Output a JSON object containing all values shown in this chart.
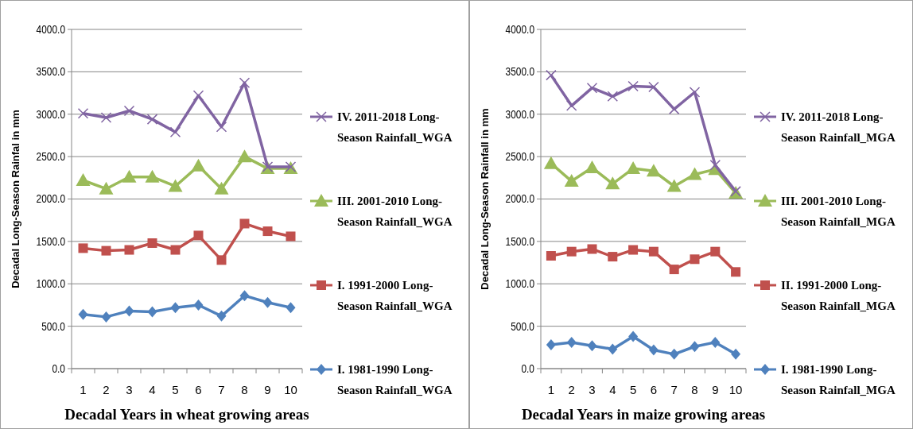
{
  "chart_data": [
    {
      "type": "line",
      "xlabel": "Decadal Years in wheat growing areas",
      "ylabel": "Decadal Long-Season  Rainfal  in mm",
      "categories": [
        "1",
        "2",
        "3",
        "4",
        "5",
        "6",
        "7",
        "8",
        "9",
        "10"
      ],
      "ylim": [
        0,
        4000
      ],
      "yticks": [
        {
          "value": 0,
          "label": "0.0"
        },
        {
          "value": 500,
          "label": "500.0"
        },
        {
          "value": 1000,
          "label": "1000.0"
        },
        {
          "value": 1500,
          "label": "1500.0"
        },
        {
          "value": 2000,
          "label": "2000.0"
        },
        {
          "value": 2500,
          "label": "2500.0"
        },
        {
          "value": 3000,
          "label": "3000.0"
        },
        {
          "value": 3500,
          "label": "3500.0"
        },
        {
          "value": 4000,
          "label": "4000.0"
        }
      ],
      "grid": "y",
      "legend": "right",
      "series": [
        {
          "name": "I. 1981-1990 Long-Season Rainfall_WGA",
          "color": "#4f81bd",
          "marker": "diamond",
          "values": [
            640,
            610,
            680,
            670,
            720,
            750,
            620,
            860,
            780,
            720
          ]
        },
        {
          "name": "I. 1991-2000 Long-Season Rainfall_WGA",
          "color": "#c0504d",
          "marker": "square",
          "values": [
            1420,
            1390,
            1400,
            1480,
            1400,
            1570,
            1280,
            1710,
            1620,
            1560
          ]
        },
        {
          "name": "III. 2001-2010 Long-Season Rainfall_WGA",
          "color": "#9bbb59",
          "marker": "triangle",
          "values": [
            2220,
            2120,
            2260,
            2260,
            2150,
            2390,
            2120,
            2500,
            2360,
            2360
          ]
        },
        {
          "name": "IV. 2011-2018 Long-Season Rainfall_WGA",
          "color": "#8064a2",
          "marker": "cross",
          "values": [
            3010,
            2960,
            3040,
            2940,
            2790,
            3220,
            2850,
            3370,
            2380,
            2380
          ]
        }
      ]
    },
    {
      "type": "line",
      "xlabel": "Decadal Years in maize growing areas",
      "ylabel": "Decadal Long-Season  Rainfall  in mm",
      "categories": [
        "1",
        "2",
        "3",
        "4",
        "5",
        "6",
        "7",
        "8",
        "9",
        "10"
      ],
      "ylim": [
        0,
        4000
      ],
      "yticks": [
        {
          "value": 0,
          "label": "0.0"
        },
        {
          "value": 500,
          "label": "500.0"
        },
        {
          "value": 1000,
          "label": "1000.0"
        },
        {
          "value": 1500,
          "label": "1500.0"
        },
        {
          "value": 2000,
          "label": "2000.0"
        },
        {
          "value": 2500,
          "label": "2500.0"
        },
        {
          "value": 3000,
          "label": "3000.0"
        },
        {
          "value": 3500,
          "label": "3500.0"
        },
        {
          "value": 4000,
          "label": "4000.0"
        }
      ],
      "grid": "y",
      "legend": "right",
      "series": [
        {
          "name": "I. 1981-1990 Long-Season Rainfall_MGA",
          "color": "#4f81bd",
          "marker": "diamond",
          "values": [
            280,
            310,
            270,
            230,
            380,
            220,
            170,
            260,
            310,
            170
          ]
        },
        {
          "name": "II. 1991-2000 Long-Season Rainfall_MGA",
          "color": "#c0504d",
          "marker": "square",
          "values": [
            1330,
            1380,
            1410,
            1320,
            1400,
            1380,
            1170,
            1290,
            1380,
            1140
          ]
        },
        {
          "name": "III. 2001-2010 Long-Season Rainfall_MGA",
          "color": "#9bbb59",
          "marker": "triangle",
          "values": [
            2420,
            2210,
            2370,
            2180,
            2360,
            2330,
            2150,
            2290,
            2350,
            2070
          ]
        },
        {
          "name": "IV. 2011-2018 Long-Season Rainfall_MGA",
          "color": "#8064a2",
          "marker": "cross",
          "values": [
            3460,
            3100,
            3310,
            3210,
            3330,
            3320,
            3060,
            3260,
            2400,
            2090
          ]
        }
      ]
    }
  ]
}
